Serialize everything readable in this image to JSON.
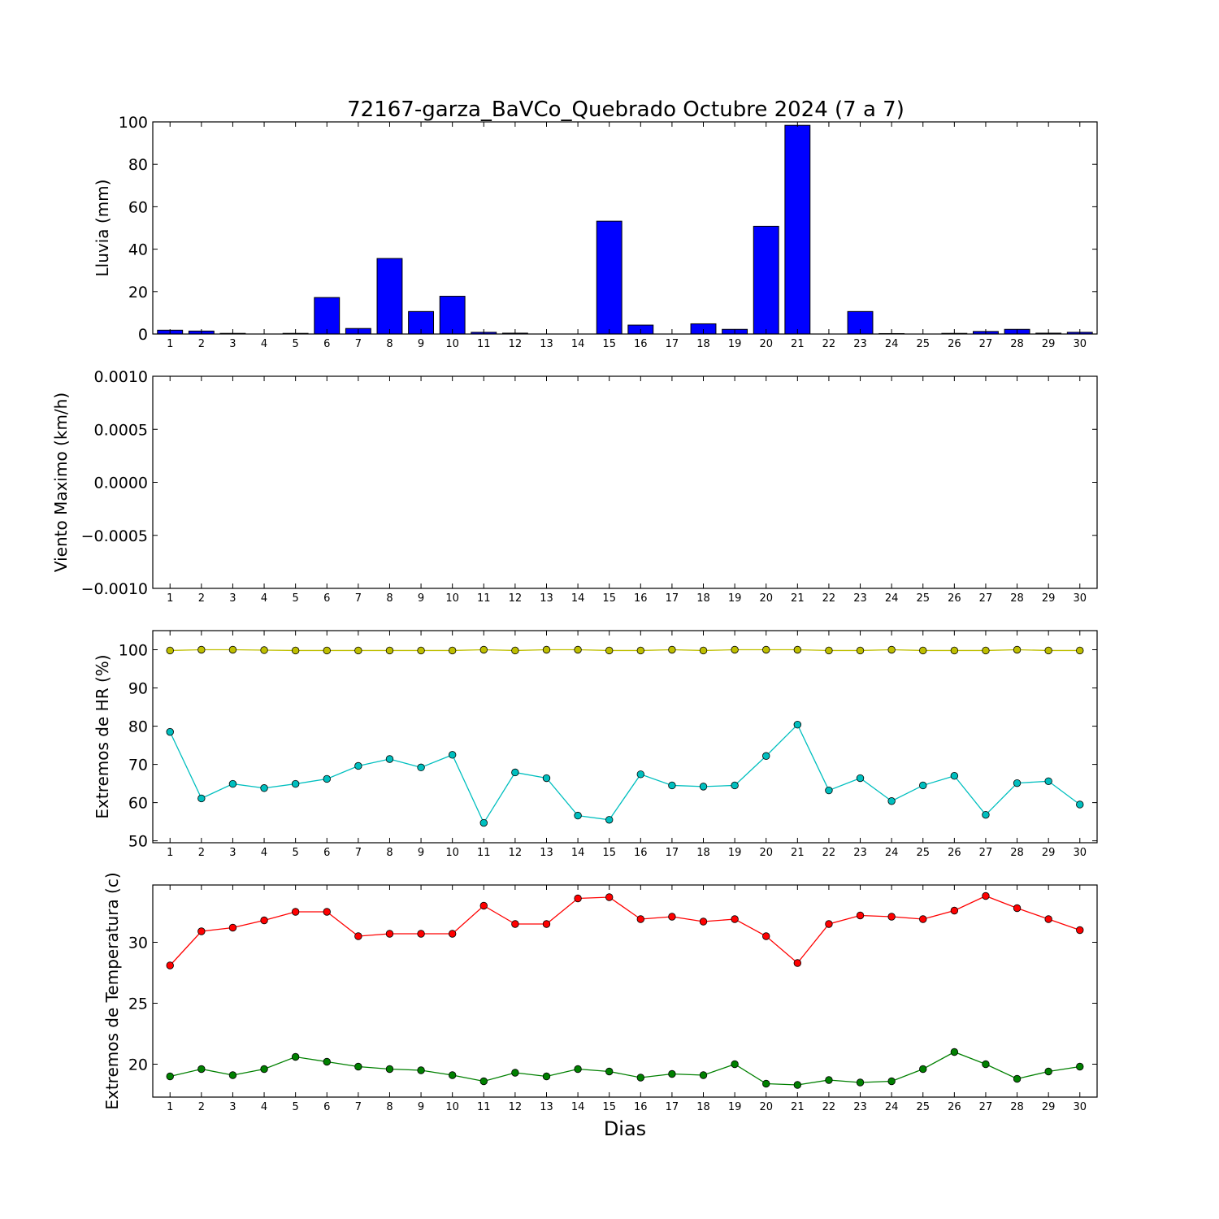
{
  "title": "72167-garza_BaVCo_Quebrado Octubre 2024  (7 a 7)",
  "xlabel": "Dias",
  "colors": {
    "rain": "#0000ff",
    "hr_max": "#bfbf00",
    "hr_min": "#00bfbf",
    "temp_max": "#ff0000",
    "temp_min": "#008000"
  },
  "chart_data": [
    {
      "type": "bar",
      "ylabel": "Lluvia (mm)",
      "ylim": [
        0,
        100
      ],
      "yticks": [
        0,
        20,
        40,
        60,
        80,
        100
      ],
      "ytick_labels": [
        "0",
        "20",
        "40",
        "60",
        "80",
        "100"
      ],
      "categories": [
        1,
        2,
        3,
        4,
        5,
        6,
        7,
        8,
        9,
        10,
        11,
        12,
        13,
        14,
        15,
        16,
        17,
        18,
        19,
        20,
        21,
        22,
        23,
        24,
        25,
        26,
        27,
        28,
        29,
        30
      ],
      "series": [
        {
          "values": [
            1.8,
            1.4,
            0.3,
            0,
            0.3,
            17.2,
            2.6,
            35.6,
            10.6,
            17.8,
            0.8,
            0.4,
            0,
            0,
            53.2,
            4.2,
            0,
            4.8,
            2.2,
            50.8,
            98.4,
            0,
            10.6,
            0.2,
            0,
            0.3,
            1.2,
            2.2,
            0.4,
            0.8
          ],
          "color_key": "rain"
        }
      ]
    },
    {
      "type": "line",
      "ylabel": "Viento Maximo (km/h)",
      "ylim": [
        -0.001,
        0.001
      ],
      "yticks": [
        -0.001,
        -0.0005,
        0,
        0.0005,
        0.001
      ],
      "ytick_labels": [
        "−0.0010",
        "−0.0005",
        "0.0000",
        "0.0005",
        "0.0010"
      ],
      "categories": [
        1,
        2,
        3,
        4,
        5,
        6,
        7,
        8,
        9,
        10,
        11,
        12,
        13,
        14,
        15,
        16,
        17,
        18,
        19,
        20,
        21,
        22,
        23,
        24,
        25,
        26,
        27,
        28,
        29,
        30
      ],
      "series": []
    },
    {
      "type": "line",
      "ylabel": "Extremos de HR (%)",
      "ylim": [
        49.5,
        105
      ],
      "yticks": [
        50,
        60,
        70,
        80,
        90,
        100
      ],
      "ytick_labels": [
        "50",
        "60",
        "70",
        "80",
        "90",
        "100"
      ],
      "categories": [
        1,
        2,
        3,
        4,
        5,
        6,
        7,
        8,
        9,
        10,
        11,
        12,
        13,
        14,
        15,
        16,
        17,
        18,
        19,
        20,
        21,
        22,
        23,
        24,
        25,
        26,
        27,
        28,
        29,
        30
      ],
      "series": [
        {
          "values": [
            99.8,
            100,
            100,
            99.9,
            99.8,
            99.8,
            99.8,
            99.8,
            99.8,
            99.8,
            100,
            99.8,
            100,
            100,
            99.8,
            99.8,
            100,
            99.8,
            100,
            100,
            100,
            99.8,
            99.8,
            100,
            99.8,
            99.8,
            99.8,
            100,
            99.8,
            99.8
          ],
          "color_key": "hr_max"
        },
        {
          "values": [
            78.5,
            61.1,
            64.9,
            63.8,
            64.9,
            66.2,
            69.6,
            71.4,
            69.2,
            72.5,
            54.7,
            67.9,
            66.4,
            56.6,
            55.5,
            67.4,
            64.5,
            64.2,
            64.5,
            72.2,
            80.4,
            63.2,
            66.4,
            60.4,
            64.5,
            67.0,
            56.8,
            65.1,
            65.6,
            59.5
          ],
          "color_key": "hr_min"
        }
      ]
    },
    {
      "type": "line",
      "ylabel": "Extremos de Temperatura (c)",
      "ylim": [
        17.3,
        34.7
      ],
      "yticks": [
        20,
        25,
        30
      ],
      "ytick_labels": [
        "20",
        "25",
        "30"
      ],
      "categories": [
        1,
        2,
        3,
        4,
        5,
        6,
        7,
        8,
        9,
        10,
        11,
        12,
        13,
        14,
        15,
        16,
        17,
        18,
        19,
        20,
        21,
        22,
        23,
        24,
        25,
        26,
        27,
        28,
        29,
        30
      ],
      "series": [
        {
          "values": [
            28.1,
            30.9,
            31.2,
            31.8,
            32.5,
            32.5,
            30.5,
            30.7,
            30.7,
            30.7,
            33.0,
            31.5,
            31.5,
            33.6,
            33.7,
            31.9,
            32.1,
            31.7,
            31.9,
            30.5,
            28.3,
            31.5,
            32.2,
            32.1,
            31.9,
            32.6,
            33.8,
            32.8,
            31.9,
            31.0
          ],
          "color_key": "temp_max"
        },
        {
          "values": [
            19.0,
            19.6,
            19.1,
            19.6,
            20.6,
            20.2,
            19.8,
            19.6,
            19.5,
            19.1,
            18.6,
            19.3,
            19.0,
            19.6,
            19.4,
            18.9,
            19.2,
            19.1,
            20.0,
            18.4,
            18.3,
            18.7,
            18.5,
            18.6,
            19.6,
            21.0,
            20.0,
            18.8,
            19.4,
            19.8
          ],
          "color_key": "temp_min"
        }
      ]
    }
  ]
}
